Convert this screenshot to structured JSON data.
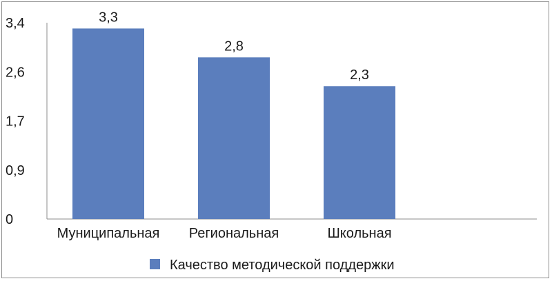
{
  "chart_data": {
    "type": "bar",
    "categories": [
      "Муниципальная",
      "Региональная",
      "Школьная"
    ],
    "series": [
      {
        "name": "Качество методической поддержки",
        "values": [
          3.3,
          2.8,
          2.3
        ],
        "value_labels": [
          "3,3",
          "2,8",
          "2,3"
        ],
        "color": "#5b7ebd"
      }
    ],
    "y_ticks": [
      "0",
      "0,9",
      "1,7",
      "2,6",
      "3,4"
    ],
    "ylim": [
      0,
      3.4
    ],
    "grid": false,
    "legend_position": "bottom"
  }
}
